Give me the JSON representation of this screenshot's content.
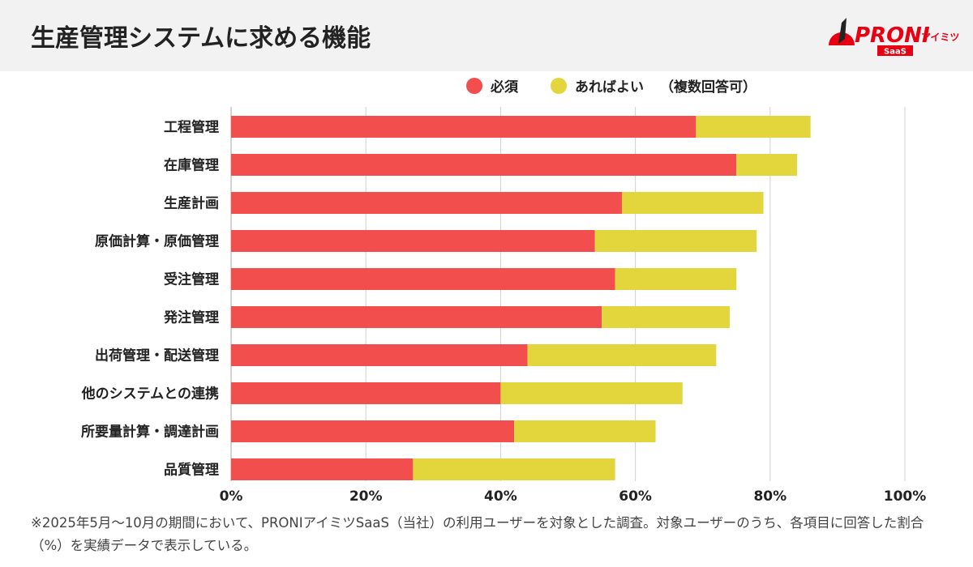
{
  "header": {
    "title": "生産管理システムに求める機能",
    "logo_text": "PRONIアイミツ SaaS"
  },
  "colors": {
    "required": "#f34e4e",
    "nice_to_have": "#e3d63c",
    "grid": "#d0d0d0"
  },
  "legend": {
    "note": "（複数回答可）"
  },
  "footnote": "※2025年5月〜10月の期間において、PRONIアイミツSaaS（当社）の利用ユーザーを対象とした調査。対象ユーザーのうち、各項目に回答した割合（%）を実績データで表示している。",
  "chart_data": {
    "type": "bar",
    "orientation": "horizontal",
    "stacked": true,
    "title": "生産管理システムに求める機能",
    "categories": [
      "工程管理",
      "在庫管理",
      "生産計画",
      "原価計算・原価管理",
      "受注管理",
      "発注管理",
      "出荷管理・配送管理",
      "他のシステムとの連携",
      "所要量計算・調達計画",
      "品質管理"
    ],
    "series": [
      {
        "name": "必須",
        "values": [
          69,
          75,
          58,
          54,
          57,
          55,
          44,
          40,
          42,
          27
        ]
      },
      {
        "name": "あればよい",
        "values": [
          17,
          9,
          21,
          24,
          18,
          19,
          28,
          27,
          21,
          30
        ]
      }
    ],
    "xlim": [
      0,
      100
    ],
    "xticks": [
      "0%",
      "20%",
      "40%",
      "60%",
      "80%",
      "100%"
    ],
    "grid": true,
    "legend_position": "top"
  }
}
